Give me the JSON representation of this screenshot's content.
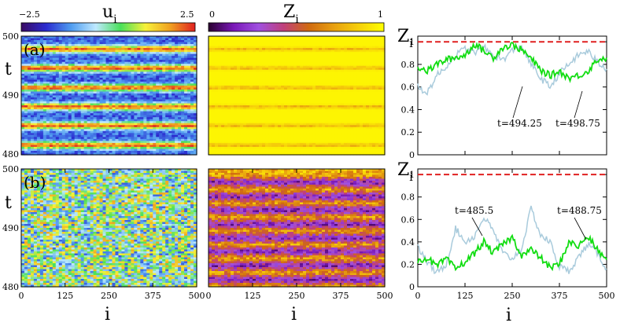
{
  "colorbar_u": {
    "label_main": "u",
    "label_sub": "i",
    "min_label": "−2.5",
    "max_label": "2.5",
    "stops": [
      "#3a0a63",
      "#2b2bd0",
      "#4f9cf0",
      "#bfe9ff",
      "#49e05a",
      "#f7f23a",
      "#f0a020",
      "#e02020"
    ]
  },
  "colorbar_z": {
    "label_main": "Z",
    "label_sub": "i",
    "min_label": "0",
    "max_label": "1",
    "stops": [
      "#2a0030",
      "#7a18b8",
      "#a050e0",
      "#c0407a",
      "#d06a10",
      "#e8a010",
      "#f6d00a",
      "#ffff00"
    ]
  },
  "panel_labels": [
    "(a)",
    "(b)"
  ],
  "y_axis_label": "t",
  "t_ticks": [
    "500",
    "490",
    "480"
  ],
  "x_ticks": [
    "0",
    "125",
    "250",
    "375",
    "500"
  ],
  "x_axis_label": "i",
  "z_axis_label_main": "Z",
  "z_axis_label_sub": "i",
  "z_ticks": [
    "0",
    "0.2",
    "0.4",
    "0.6",
    "0.8",
    "1"
  ],
  "annotations_a": [
    "t=494.25",
    "t=498.75"
  ],
  "annotations_b": [
    "t=485.5",
    "t=488.75"
  ],
  "series_colors": {
    "green": "#11dd11",
    "lightblue": "#a9cbdc",
    "dashed_red": "#e02020"
  },
  "chart_data": [
    {
      "type": "heatmap",
      "panel": "(a)",
      "quantity": "u_i",
      "x_range": [
        0,
        500
      ],
      "y_range": [
        480,
        500
      ],
      "color_range": [
        -2.5,
        2.5
      ],
      "band_centers_t": [
        481.6,
        484.9,
        488.1,
        491.3,
        494.6,
        497.8
      ]
    },
    {
      "type": "heatmap",
      "panel": "(a)",
      "quantity": "Z_i",
      "x_range": [
        0,
        500
      ],
      "y_range": [
        480,
        500
      ],
      "color_range": [
        0,
        1
      ],
      "band_centers_t": [
        481.6,
        484.9,
        488.1,
        491.3,
        494.6,
        497.8
      ]
    },
    {
      "type": "heatmap",
      "panel": "(b)",
      "quantity": "u_i",
      "x_range": [
        0,
        500
      ],
      "y_range": [
        480,
        500
      ],
      "color_range": [
        -2.5,
        2.5
      ]
    },
    {
      "type": "heatmap",
      "panel": "(b)",
      "quantity": "Z_i",
      "x_range": [
        0,
        500
      ],
      "y_range": [
        480,
        500
      ],
      "color_range": [
        0,
        1
      ],
      "band_centers_t": [
        481.2,
        483.6,
        486.0,
        488.3,
        490.6,
        493.0,
        495.3,
        497.7
      ]
    },
    {
      "type": "line",
      "panel": "(a)",
      "xlim": [
        0,
        500
      ],
      "ylim": [
        0,
        1.05
      ],
      "reference_line_y": 1,
      "series": [
        {
          "label": "t=494.25",
          "x": [
            0,
            25,
            50,
            75,
            100,
            125,
            150,
            175,
            200,
            225,
            250,
            275,
            300,
            325,
            350,
            375,
            400,
            425,
            450,
            475,
            500
          ],
          "y": [
            0.78,
            0.74,
            0.8,
            0.84,
            0.86,
            0.88,
            0.98,
            0.92,
            0.86,
            0.95,
            0.97,
            0.93,
            0.85,
            0.75,
            0.7,
            0.74,
            0.68,
            0.7,
            0.74,
            0.84,
            0.86
          ]
        },
        {
          "label": "t=498.75",
          "x": [
            0,
            25,
            50,
            75,
            100,
            125,
            150,
            175,
            200,
            225,
            250,
            275,
            300,
            325,
            350,
            375,
            400,
            425,
            450,
            475,
            500
          ],
          "y": [
            0.6,
            0.55,
            0.7,
            0.78,
            0.88,
            0.94,
            0.9,
            0.95,
            0.88,
            0.84,
            0.92,
            0.96,
            0.8,
            0.68,
            0.6,
            0.72,
            0.8,
            0.88,
            0.92,
            0.82,
            0.76
          ]
        }
      ]
    },
    {
      "type": "line",
      "panel": "(b)",
      "xlim": [
        0,
        500
      ],
      "ylim": [
        0,
        1.05
      ],
      "reference_line_y": 1,
      "series": [
        {
          "label": "t=488.75",
          "x": [
            0,
            25,
            50,
            75,
            100,
            125,
            150,
            175,
            200,
            225,
            250,
            275,
            300,
            325,
            350,
            375,
            400,
            425,
            450,
            475,
            500
          ],
          "y": [
            0.22,
            0.26,
            0.18,
            0.25,
            0.16,
            0.22,
            0.3,
            0.4,
            0.3,
            0.38,
            0.44,
            0.28,
            0.33,
            0.26,
            0.17,
            0.2,
            0.4,
            0.36,
            0.45,
            0.33,
            0.24
          ]
        },
        {
          "label": "t=485.5",
          "x": [
            0,
            25,
            50,
            75,
            100,
            125,
            150,
            175,
            200,
            225,
            250,
            275,
            300,
            325,
            350,
            375,
            400,
            425,
            450,
            475,
            500
          ],
          "y": [
            0.35,
            0.22,
            0.12,
            0.2,
            0.52,
            0.4,
            0.45,
            0.62,
            0.5,
            0.3,
            0.25,
            0.34,
            0.7,
            0.46,
            0.4,
            0.18,
            0.14,
            0.26,
            0.38,
            0.3,
            0.16
          ]
        }
      ]
    }
  ]
}
